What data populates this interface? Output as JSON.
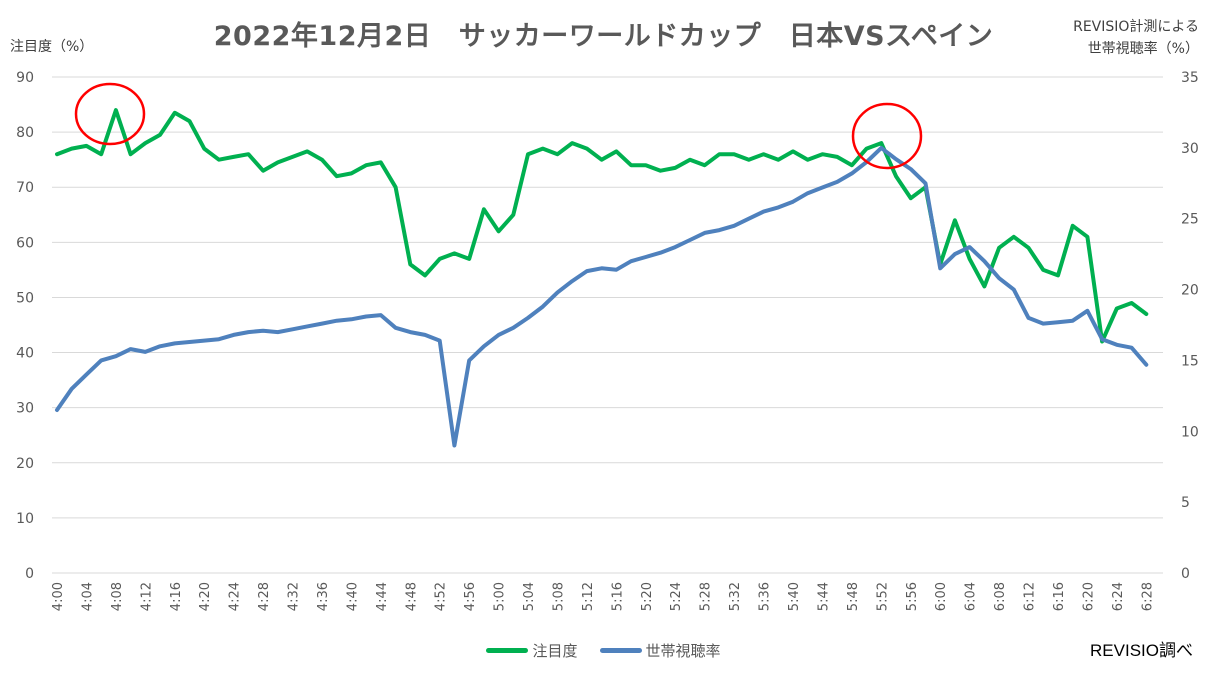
{
  "title": "2022年12月2日　サッカーワールドカップ　日本VSスペイン",
  "left_axis_label": "注目度（%）",
  "right_axis_label_line1": "REVISIO計測による",
  "right_axis_label_line2": "世帯視聴率（%）",
  "credit": "REVISIO調べ",
  "legend": [
    {
      "label": "注目度",
      "color": "#00B050"
    },
    {
      "label": "世帯視聴率",
      "color": "#4F81BD"
    }
  ],
  "colors": {
    "attention": "#00B050",
    "rating": "#4F81BD",
    "highlight": "#FF0000",
    "grid": "#D9D9D9"
  },
  "chart_data": {
    "type": "line",
    "title": "2022年12月2日　サッカーワールドカップ　日本VSスペイン",
    "xlabel": "",
    "ylabel": "注目度（%）",
    "y2label": "REVISIO計測による 世帯視聴率（%）",
    "ylim": [
      0,
      90
    ],
    "y2lim": [
      0,
      35
    ],
    "yticks": [
      0,
      10,
      20,
      30,
      40,
      50,
      60,
      70,
      80,
      90
    ],
    "y2ticks": [
      0,
      5,
      10,
      15,
      20,
      25,
      30,
      35
    ],
    "xtick_labels": [
      "4:00",
      "4:04",
      "4:08",
      "4:12",
      "4:16",
      "4:20",
      "4:24",
      "4:28",
      "4:32",
      "4:36",
      "4:40",
      "4:44",
      "4:48",
      "4:52",
      "4:56",
      "5:00",
      "5:04",
      "5:08",
      "5:12",
      "5:16",
      "5:20",
      "5:24",
      "5:28",
      "5:32",
      "5:36",
      "5:40",
      "5:44",
      "5:48",
      "5:52",
      "5:56",
      "6:00",
      "6:04",
      "6:08",
      "6:12",
      "6:16",
      "6:20",
      "6:24",
      "6:28"
    ],
    "grid": true,
    "legend_position": "bottom",
    "annotations": [
      "red circle around 4:07 peak of 注目度",
      "red circle around 5:52 peak"
    ],
    "x": [
      "4:00",
      "4:02",
      "4:04",
      "4:06",
      "4:08",
      "4:10",
      "4:12",
      "4:14",
      "4:16",
      "4:18",
      "4:20",
      "4:22",
      "4:24",
      "4:26",
      "4:28",
      "4:30",
      "4:32",
      "4:34",
      "4:36",
      "4:38",
      "4:40",
      "4:42",
      "4:44",
      "4:46",
      "4:48",
      "4:50",
      "4:52",
      "4:54",
      "4:56",
      "4:58",
      "5:00",
      "5:02",
      "5:04",
      "5:06",
      "5:08",
      "5:10",
      "5:12",
      "5:14",
      "5:16",
      "5:18",
      "5:20",
      "5:22",
      "5:24",
      "5:26",
      "5:28",
      "5:30",
      "5:32",
      "5:34",
      "5:36",
      "5:38",
      "5:40",
      "5:42",
      "5:44",
      "5:46",
      "5:48",
      "5:50",
      "5:52",
      "5:54",
      "5:56",
      "5:58",
      "6:00",
      "6:02",
      "6:04",
      "6:06",
      "6:08",
      "6:10",
      "6:12",
      "6:14",
      "6:16",
      "6:18",
      "6:20",
      "6:22",
      "6:24",
      "6:26",
      "6:28"
    ],
    "series": [
      {
        "name": "注目度",
        "axis": "left",
        "color": "#00B050",
        "values": [
          76,
          77,
          77.5,
          76,
          84,
          76,
          78,
          79.5,
          83.5,
          82,
          77,
          75,
          75.5,
          76,
          73,
          74.5,
          75.5,
          76.5,
          75,
          72,
          72.5,
          74,
          74.5,
          70,
          56,
          54,
          57,
          58,
          57,
          66,
          62,
          65,
          76,
          77,
          76,
          78,
          77,
          75,
          76.5,
          74,
          74,
          73,
          73.5,
          75,
          74,
          76,
          76,
          75,
          76,
          75,
          76.5,
          75,
          76,
          75.5,
          74,
          77,
          78,
          72,
          68,
          70,
          56,
          64,
          57,
          52,
          59,
          61,
          59,
          55,
          54,
          63,
          61,
          42,
          48,
          49,
          47
        ]
      },
      {
        "name": "世帯視聴率",
        "axis": "right",
        "color": "#4F81BD",
        "values": [
          11.5,
          13,
          14,
          15,
          15.3,
          15.8,
          15.6,
          16,
          16.2,
          16.3,
          16.4,
          16.5,
          16.8,
          17,
          17.1,
          17,
          17.2,
          17.4,
          17.6,
          17.8,
          17.9,
          18.1,
          18.2,
          17.3,
          17,
          16.8,
          16.4,
          9,
          15,
          16,
          16.8,
          17.3,
          18,
          18.8,
          19.8,
          20.6,
          21.3,
          21.5,
          21.4,
          22,
          22.3,
          22.6,
          23,
          23.5,
          24,
          24.2,
          24.5,
          25,
          25.5,
          25.8,
          26.2,
          26.8,
          27.2,
          27.6,
          28.2,
          29,
          30,
          29.2,
          28.5,
          27.5,
          21.5,
          22.5,
          23,
          22,
          20.8,
          20,
          18,
          17.6,
          17.7,
          17.8,
          18.5,
          16.5,
          16.1,
          15.9,
          14.7
        ]
      }
    ]
  }
}
